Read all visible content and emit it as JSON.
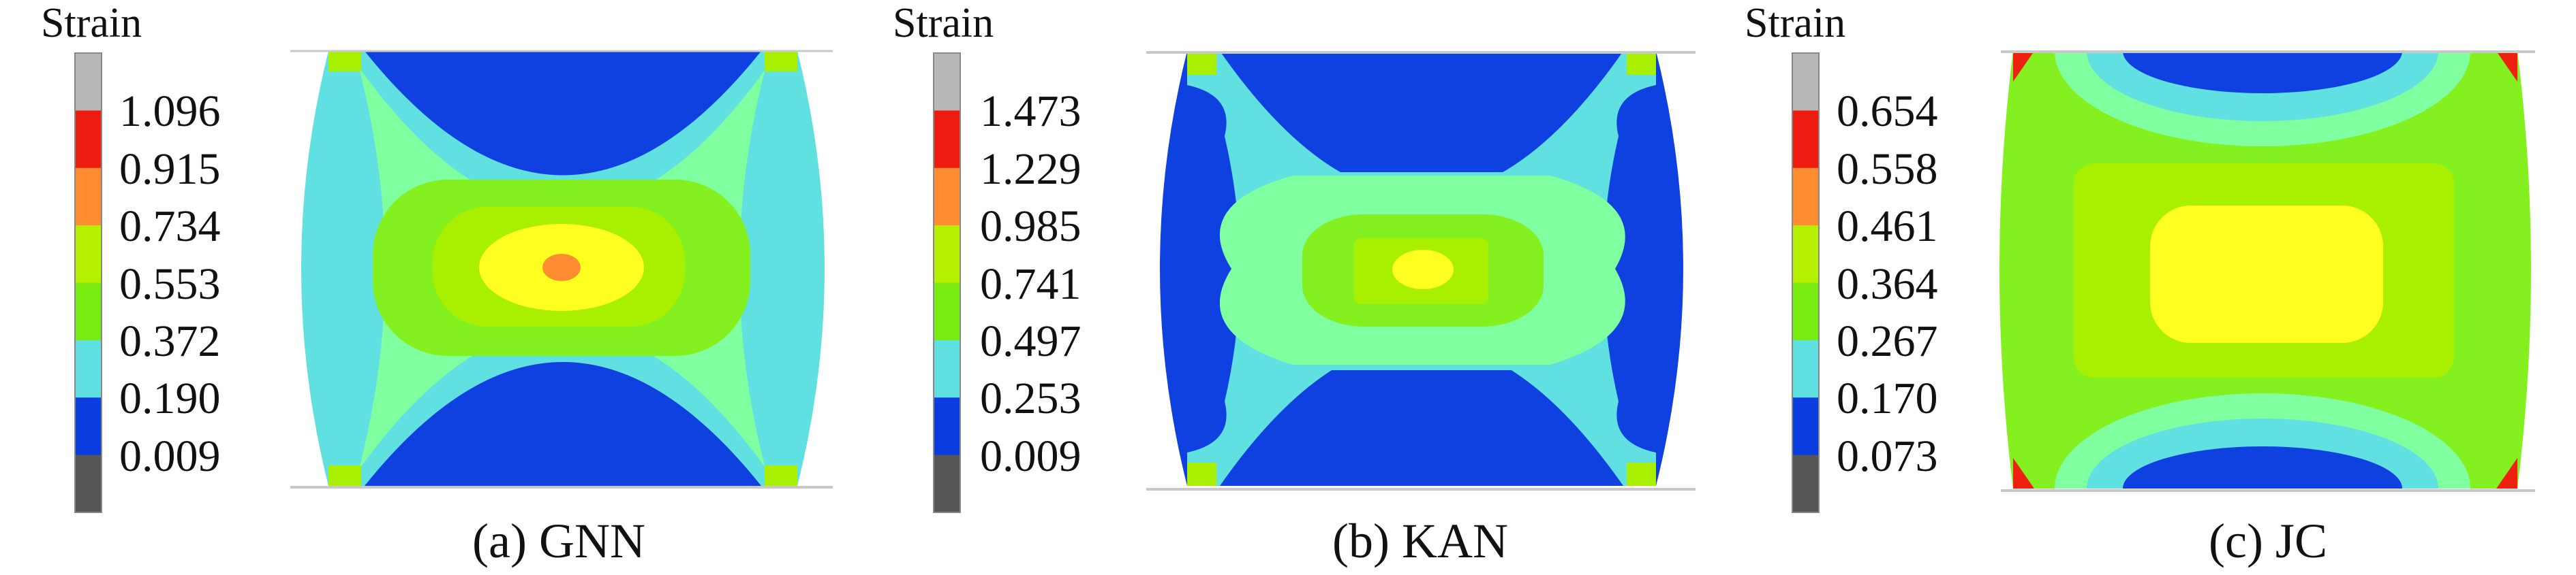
{
  "chart_data": [
    {
      "type": "heatmap",
      "title": "(a) GNN",
      "colorbar_title": "Strain",
      "levels": [
        "1.096",
        "0.915",
        "0.734",
        "0.553",
        "0.372",
        "0.190",
        "0.009"
      ]
    },
    {
      "type": "heatmap",
      "title": "(b) KAN",
      "colorbar_title": "Strain",
      "levels": [
        "1.473",
        "1.229",
        "0.985",
        "0.741",
        "0.497",
        "0.253",
        "0.009"
      ]
    },
    {
      "type": "heatmap",
      "title": "(c) JC",
      "colorbar_title": "Strain",
      "levels": [
        "0.654",
        "0.558",
        "0.461",
        "0.364",
        "0.267",
        "0.170",
        "0.073"
      ]
    }
  ],
  "colors": {
    "colorbar": [
      "#b8b8b8",
      "#ee1c10",
      "#ff8c30",
      "#b4f000",
      "#78ec10",
      "#60e0e0",
      "#0a3ce0",
      "#555555"
    ],
    "blue": "#0f40e0",
    "cyan": "#60e0e0",
    "light_green": "#80ffa0",
    "green": "#84f020",
    "yellow_green": "#a8f000",
    "yellow": "#ffff20",
    "orange": "#ff8c30",
    "red": "#ee2010"
  }
}
